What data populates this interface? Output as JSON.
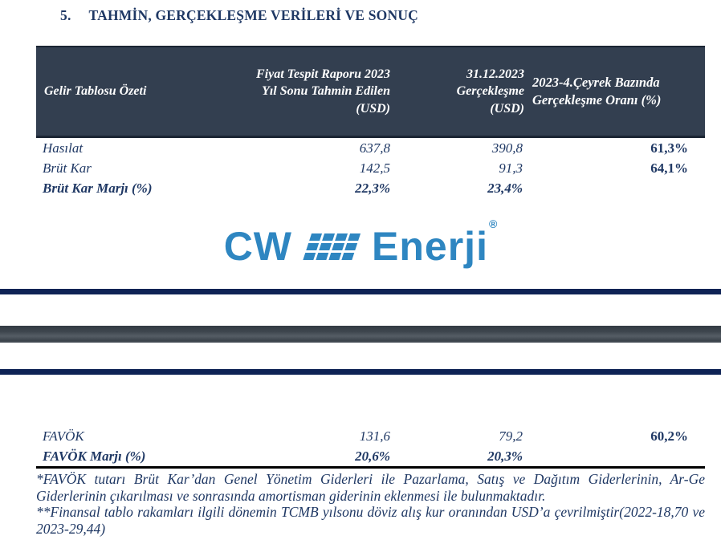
{
  "title": {
    "number": "5.",
    "text": "TAHMİN, GERÇEKLEŞME VERİLERİ VE SONUÇ"
  },
  "table": {
    "columns": {
      "c1": "Gelir Tablosu Özeti",
      "c2": "Fiyat Tespit Raporu 2023\nYıl Sonu Tahmin Edilen\n(USD)",
      "c3": "31.12.2023\nGerçekleşme\n(USD)",
      "c4": "2023-4.Çeyrek Bazında\nGerçekleşme Oranı (%)"
    },
    "rows": [
      {
        "label": "Hasılat",
        "forecast": "637,8",
        "actual": "390,8",
        "ratio": "61,3%"
      },
      {
        "label": "Brüt Kar",
        "forecast": "142,5",
        "actual": "91,3",
        "ratio": "64,1%"
      },
      {
        "label": "Brüt Kar Marjı (%)",
        "forecast": "22,3%",
        "actual": "23,4%",
        "ratio": ""
      }
    ],
    "rows2": [
      {
        "label": "FAVÖK",
        "forecast": "131,6",
        "actual": "79,2",
        "ratio": "60,2%"
      },
      {
        "label": "FAVÖK Marjı (%)",
        "forecast": "20,6%",
        "actual": "20,3%",
        "ratio": ""
      }
    ]
  },
  "logo": {
    "word_left": "CW",
    "word_right": "Enerji",
    "registered_mark": "®"
  },
  "footnotes": {
    "note1": "*FAVÖK tutarı Brüt Kar’dan Genel Yönetim Giderleri ile Pazarlama, Satış ve Dağıtım Giderlerinin, Ar-Ge Giderlerinin çıkarılması ve sonrasında amortisman giderinin eklenmesi ile bulunmaktadır.",
    "note2": "**Finansal tablo rakamları ilgili dönemin TCMB yılsonu döviz alış kur oranından USD’a çevrilmiştir(2022-18,70 ve 2023-29,44)"
  },
  "colors": {
    "header_bg": "#333F50",
    "text_navy": "#1F3864",
    "bar_navy": "#0E2355",
    "bar_gray": "#434B53",
    "logo_blue": "#2E86C1"
  }
}
